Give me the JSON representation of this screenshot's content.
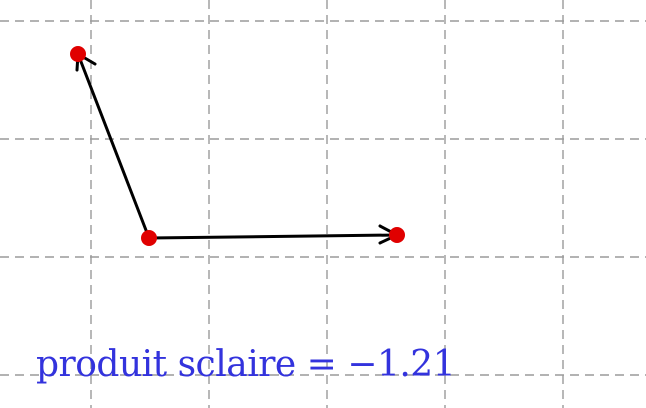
{
  "label": {
    "text": "produit sclaire = −1.21",
    "color": "#3333dd"
  },
  "colors": {
    "grid": "#9a9a9a",
    "vector": "#000000",
    "point": "#e00000"
  }
}
